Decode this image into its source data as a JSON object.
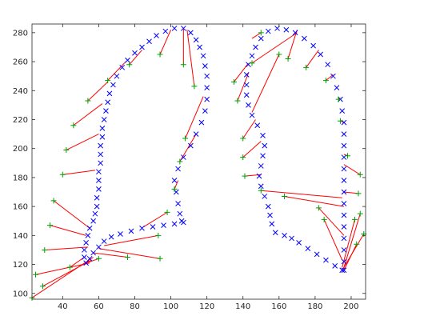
{
  "chart_data": {
    "type": "scatter",
    "title": "",
    "xlabel": "",
    "ylabel": "",
    "xlim": [
      23,
      208
    ],
    "ylim": [
      96,
      286
    ],
    "xticks": [
      40,
      60,
      80,
      100,
      120,
      140,
      160,
      180,
      200
    ],
    "yticks": [
      100,
      120,
      140,
      160,
      180,
      200,
      220,
      240,
      260,
      280
    ],
    "grid": false,
    "legend": "none",
    "colors": {
      "contour": "#0000ff",
      "points": "#00a000",
      "correspondences": "#ff0000",
      "axes": "#262626"
    },
    "series": [
      {
        "marker": "x",
        "values_left_contour": [
          [
            107,
            149
          ],
          [
            102,
            148
          ],
          [
            96,
            147
          ],
          [
            90,
            146
          ],
          [
            84,
            145
          ],
          [
            78,
            143
          ],
          [
            72,
            141
          ],
          [
            67,
            139
          ],
          [
            63,
            136
          ],
          [
            60,
            132
          ],
          [
            57,
            128
          ],
          [
            55,
            124
          ],
          [
            53,
            121
          ],
          [
            52,
            125
          ],
          [
            52,
            130
          ],
          [
            53,
            135
          ],
          [
            54,
            140
          ],
          [
            55,
            145
          ],
          [
            57,
            150
          ],
          [
            58,
            155
          ],
          [
            59,
            160
          ],
          [
            59,
            166
          ],
          [
            60,
            172
          ],
          [
            60,
            178
          ],
          [
            60,
            184
          ],
          [
            61,
            190
          ],
          [
            61,
            196
          ],
          [
            61,
            202
          ],
          [
            62,
            208
          ],
          [
            62,
            214
          ],
          [
            63,
            220
          ],
          [
            64,
            226
          ],
          [
            65,
            232
          ],
          [
            66,
            238
          ],
          [
            68,
            244
          ],
          [
            70,
            250
          ],
          [
            73,
            256
          ],
          [
            76,
            261
          ],
          [
            80,
            266
          ],
          [
            84,
            270
          ],
          [
            88,
            274
          ],
          [
            92,
            278
          ],
          [
            97,
            281
          ],
          [
            102,
            283
          ],
          [
            107,
            283
          ],
          [
            111,
            280
          ],
          [
            114,
            275
          ],
          [
            116,
            270
          ],
          [
            118,
            264
          ],
          [
            119,
            257
          ],
          [
            120,
            250
          ],
          [
            120,
            242
          ],
          [
            120,
            234
          ],
          [
            119,
            226
          ],
          [
            117,
            218
          ],
          [
            114,
            210
          ],
          [
            111,
            202
          ],
          [
            107,
            194
          ],
          [
            104,
            186
          ],
          [
            102,
            178
          ],
          [
            103,
            170
          ],
          [
            104,
            162
          ],
          [
            105,
            155
          ],
          [
            106,
            150
          ]
        ],
        "values_right_contour": [
          [
            196,
            116
          ],
          [
            191,
            119
          ],
          [
            186,
            123
          ],
          [
            181,
            127
          ],
          [
            176,
            131
          ],
          [
            171,
            135
          ],
          [
            167,
            138
          ],
          [
            163,
            140
          ],
          [
            158,
            142
          ],
          [
            156,
            148
          ],
          [
            155,
            154
          ],
          [
            154,
            160
          ],
          [
            152,
            167
          ],
          [
            150,
            174
          ],
          [
            149,
            181
          ],
          [
            150,
            188
          ],
          [
            151,
            195
          ],
          [
            152,
            202
          ],
          [
            151,
            209
          ],
          [
            148,
            216
          ],
          [
            145,
            223
          ],
          [
            143,
            230
          ],
          [
            142,
            237
          ],
          [
            142,
            244
          ],
          [
            142,
            251
          ],
          [
            143,
            258
          ],
          [
            145,
            264
          ],
          [
            147,
            270
          ],
          [
            150,
            276
          ],
          [
            154,
            281
          ],
          [
            159,
            283
          ],
          [
            164,
            282
          ],
          [
            169,
            280
          ],
          [
            174,
            276
          ],
          [
            179,
            271
          ],
          [
            183,
            265
          ],
          [
            187,
            258
          ],
          [
            190,
            250
          ],
          [
            192,
            242
          ],
          [
            194,
            234
          ],
          [
            195,
            226
          ],
          [
            196,
            218
          ],
          [
            196,
            210
          ],
          [
            196,
            202
          ],
          [
            196,
            194
          ],
          [
            196,
            186
          ],
          [
            196,
            178
          ],
          [
            196,
            170
          ],
          [
            196,
            162
          ],
          [
            196,
            154
          ],
          [
            196,
            146
          ],
          [
            196,
            138
          ],
          [
            196,
            130
          ],
          [
            196,
            122
          ],
          [
            195,
            116
          ]
        ]
      },
      {
        "marker": "+",
        "values": [
          [
            23,
            97
          ],
          [
            29,
            105
          ],
          [
            25,
            113
          ],
          [
            30,
            130
          ],
          [
            33,
            147
          ],
          [
            35,
            164
          ],
          [
            40,
            182
          ],
          [
            42,
            199
          ],
          [
            46,
            216
          ],
          [
            54,
            233
          ],
          [
            65,
            247
          ],
          [
            77,
            258
          ],
          [
            94,
            265
          ],
          [
            107,
            258
          ],
          [
            113,
            243
          ],
          [
            108,
            207
          ],
          [
            105,
            191
          ],
          [
            102,
            172
          ],
          [
            98,
            156
          ],
          [
            93,
            140
          ],
          [
            94,
            124
          ],
          [
            76,
            125
          ],
          [
            60,
            124
          ],
          [
            44,
            118
          ],
          [
            135,
            246
          ],
          [
            137,
            233
          ],
          [
            140,
            207
          ],
          [
            140,
            194
          ],
          [
            141,
            181
          ],
          [
            150,
            171
          ],
          [
            163,
            167
          ],
          [
            165,
            262
          ],
          [
            175,
            256
          ],
          [
            186,
            247
          ],
          [
            193,
            234
          ],
          [
            194,
            219
          ],
          [
            198,
            195
          ],
          [
            205,
            182
          ],
          [
            204,
            169
          ],
          [
            205,
            155
          ],
          [
            207,
            141
          ],
          [
            203,
            134
          ],
          [
            202,
            151
          ],
          [
            185,
            151
          ],
          [
            182,
            159
          ],
          [
            160,
            265
          ],
          [
            145,
            259
          ],
          [
            150,
            280
          ]
        ]
      },
      {
        "marker": "line",
        "values": [
          [
            [
              23,
              97
            ],
            [
              57,
              125
            ]
          ],
          [
            [
              29,
              105
            ],
            [
              56,
              123
            ]
          ],
          [
            [
              25,
              113
            ],
            [
              55,
              121
            ]
          ],
          [
            [
              30,
              130
            ],
            [
              54,
              132
            ]
          ],
          [
            [
              33,
              147
            ],
            [
              53,
              140
            ]
          ],
          [
            [
              35,
              164
            ],
            [
              55,
              145
            ]
          ],
          [
            [
              40,
              182
            ],
            [
              58,
              185
            ]
          ],
          [
            [
              42,
              199
            ],
            [
              60,
              210
            ]
          ],
          [
            [
              46,
              216
            ],
            [
              62,
              231
            ]
          ],
          [
            [
              54,
              233
            ],
            [
              65,
              246
            ]
          ],
          [
            [
              65,
              247
            ],
            [
              75,
              260
            ]
          ],
          [
            [
              77,
              258
            ],
            [
              84,
              268
            ]
          ],
          [
            [
              94,
              265
            ],
            [
              100,
              282
            ]
          ],
          [
            [
              107,
              258
            ],
            [
              107,
              283
            ]
          ],
          [
            [
              113,
              243
            ],
            [
              109,
              282
            ]
          ],
          [
            [
              108,
              207
            ],
            [
              118,
              236
            ]
          ],
          [
            [
              105,
              191
            ],
            [
              114,
              210
            ]
          ],
          [
            [
              102,
              172
            ],
            [
              104,
              178
            ]
          ],
          [
            [
              98,
              156
            ],
            [
              85,
              146
            ]
          ],
          [
            [
              93,
              140
            ],
            [
              63,
              133
            ]
          ],
          [
            [
              94,
              124
            ],
            [
              60,
              131
            ]
          ],
          [
            [
              76,
              125
            ],
            [
              57,
              128
            ]
          ],
          [
            [
              60,
              124
            ],
            [
              53,
              121
            ]
          ],
          [
            [
              44,
              118
            ],
            [
              52,
              125
            ]
          ],
          [
            [
              135,
              246
            ],
            [
              143,
              259
            ]
          ],
          [
            [
              137,
              233
            ],
            [
              143,
              252
            ]
          ],
          [
            [
              140,
              207
            ],
            [
              147,
              220
            ]
          ],
          [
            [
              140,
              194
            ],
            [
              150,
              205
            ]
          ],
          [
            [
              141,
              181
            ],
            [
              150,
              182
            ]
          ],
          [
            [
              150,
              171
            ],
            [
              195,
              166
            ]
          ],
          [
            [
              163,
              167
            ],
            [
              196,
              160
            ]
          ],
          [
            [
              165,
              262
            ],
            [
              170,
              282
            ]
          ],
          [
            [
              175,
              256
            ],
            [
              182,
              268
            ]
          ],
          [
            [
              186,
              247
            ],
            [
              190,
              251
            ]
          ],
          [
            [
              193,
              234
            ],
            [
              194,
              235
            ]
          ],
          [
            [
              194,
              219
            ],
            [
              196,
              218
            ]
          ],
          [
            [
              198,
              195
            ],
            [
              196,
              196
            ]
          ],
          [
            [
              205,
              182
            ],
            [
              196,
              189
            ]
          ],
          [
            [
              204,
              169
            ],
            [
              196,
              170
            ]
          ],
          [
            [
              205,
              155
            ],
            [
              196,
              118
            ]
          ],
          [
            [
              207,
              141
            ],
            [
              195,
              116
            ]
          ],
          [
            [
              203,
              134
            ],
            [
              196,
              116
            ]
          ],
          [
            [
              202,
              151
            ],
            [
              195,
              118
            ]
          ],
          [
            [
              185,
              151
            ],
            [
              195,
              123
            ]
          ],
          [
            [
              182,
              159
            ],
            [
              196,
              140
            ]
          ],
          [
            [
              160,
              265
            ],
            [
              145,
              225
            ]
          ],
          [
            [
              145,
              259
            ],
            [
              170,
              280
            ]
          ],
          [
            [
              150,
              280
            ],
            [
              145,
              276
            ]
          ]
        ]
      }
    ]
  }
}
